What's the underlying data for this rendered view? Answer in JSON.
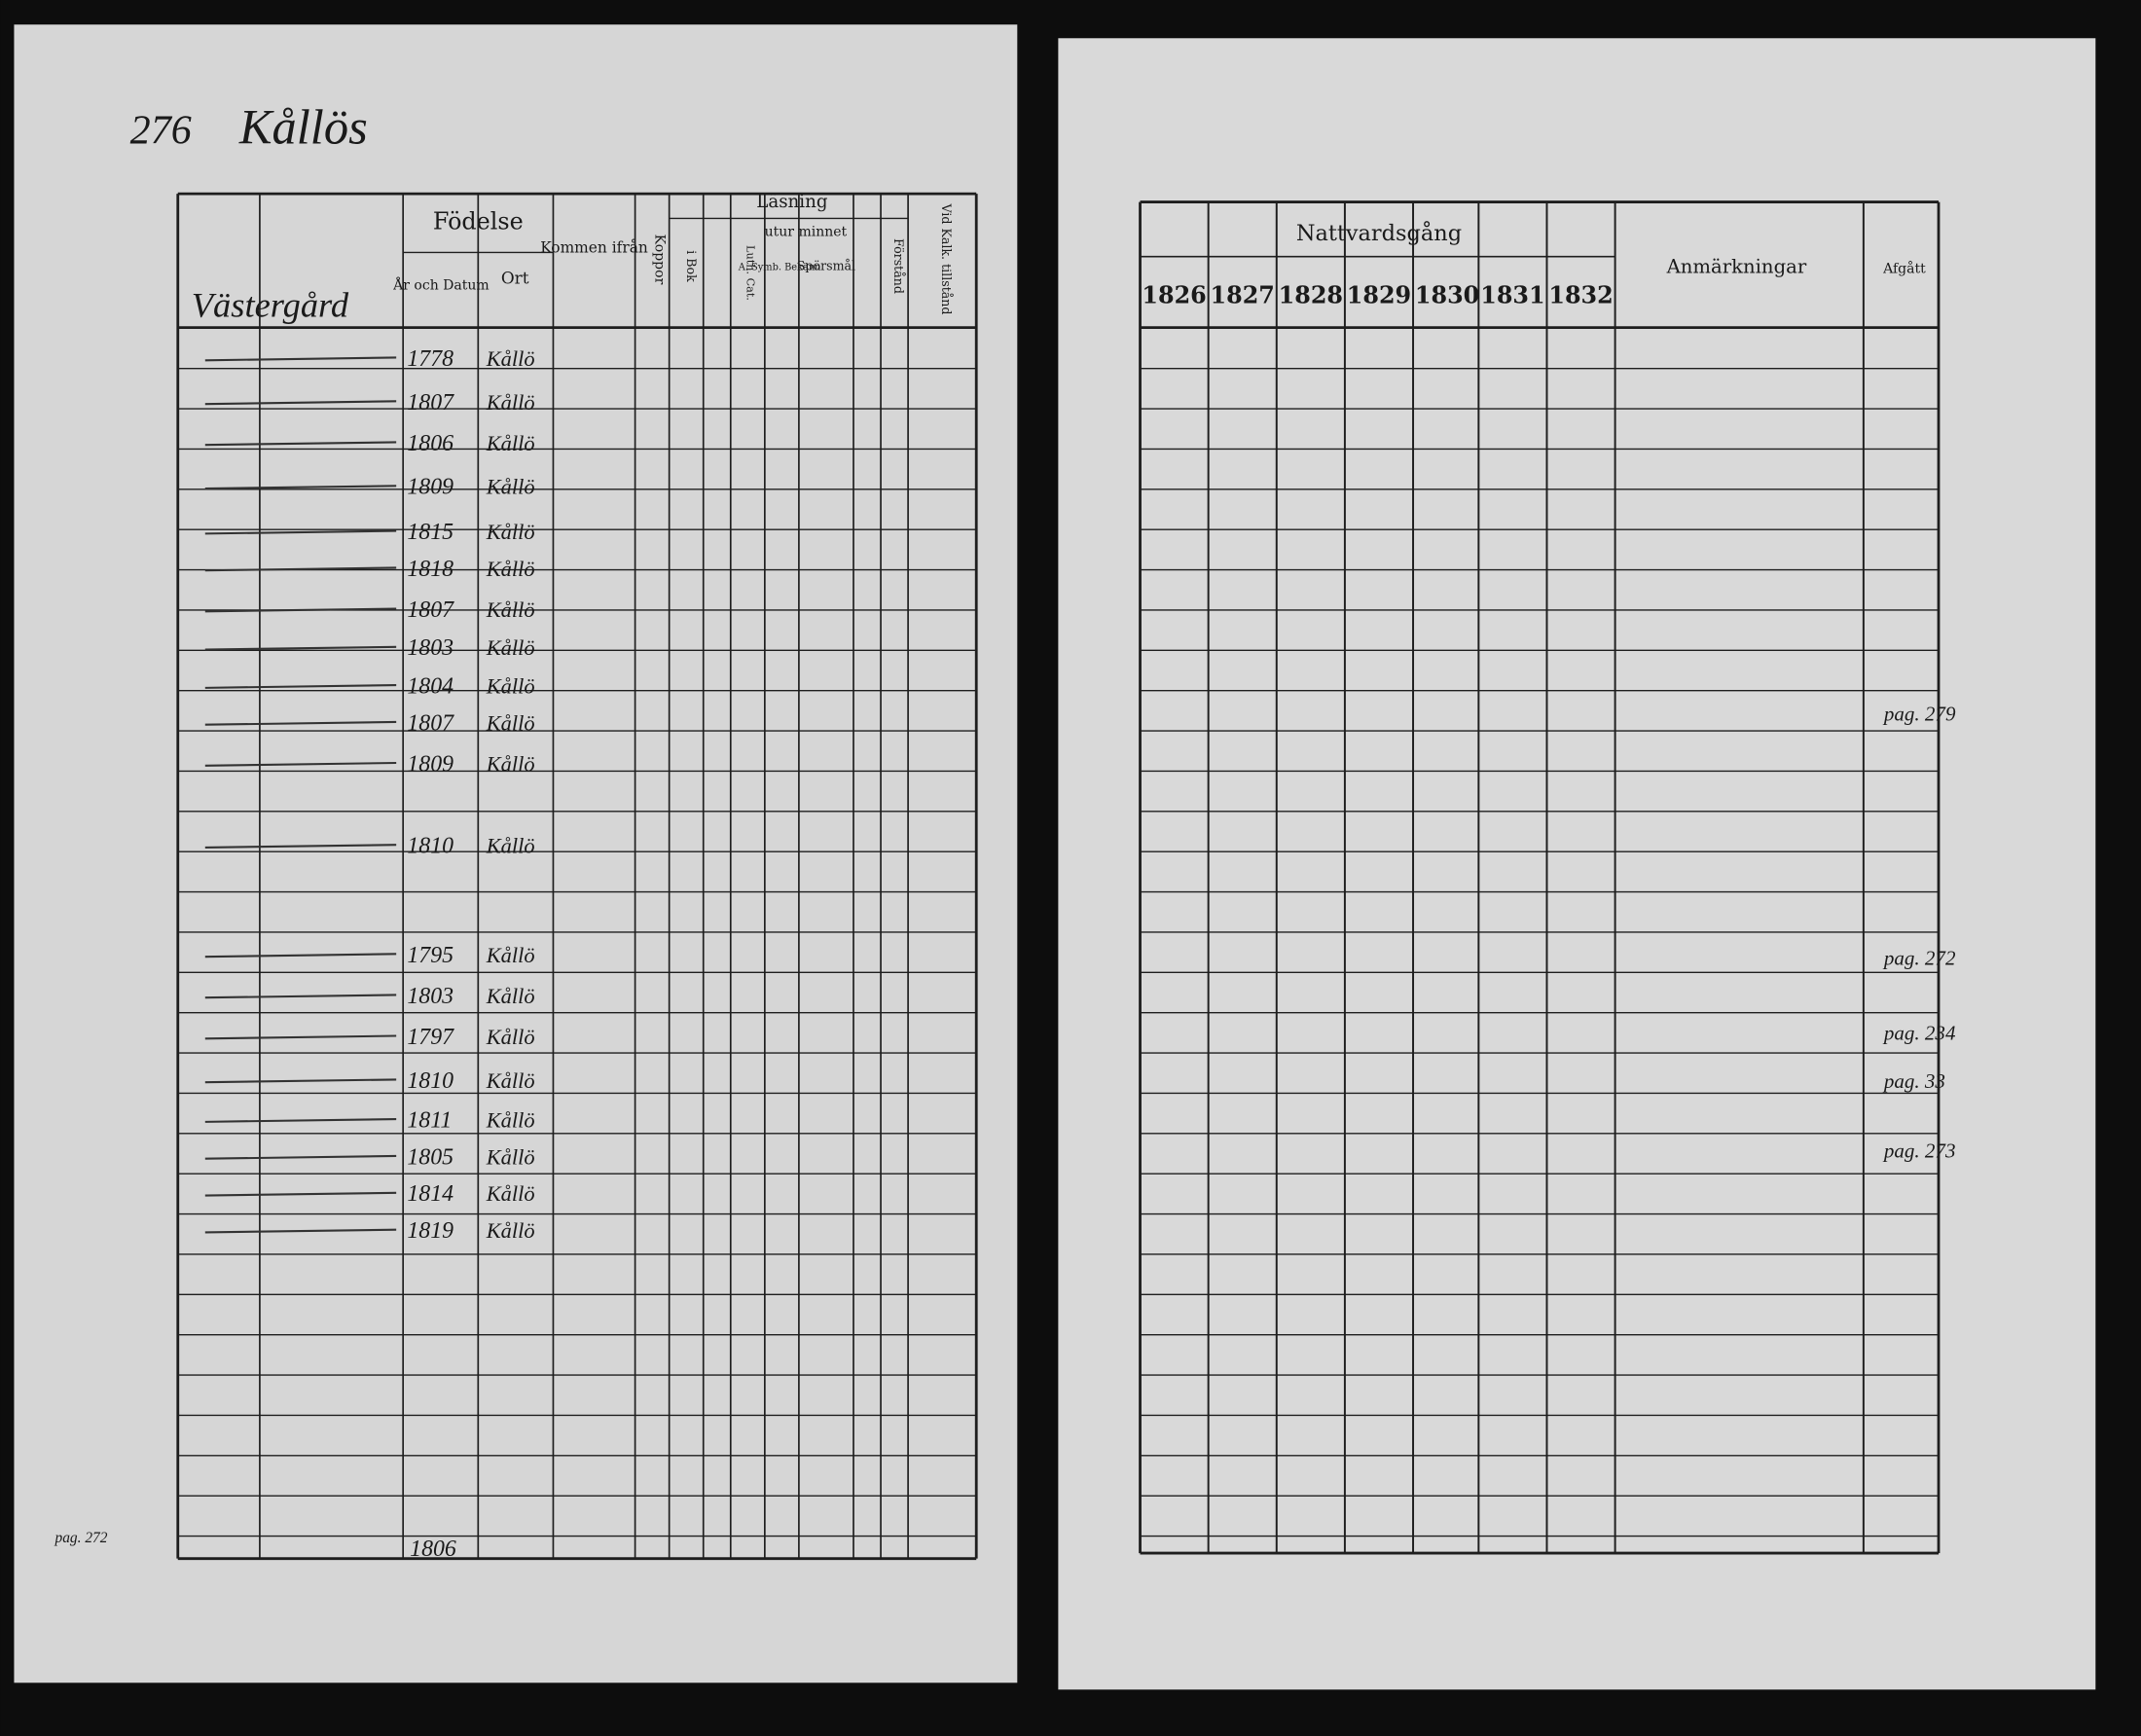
{
  "left_page": {
    "header": {
      "page_number": "276",
      "village": "Kållös",
      "farm": "Västergård"
    },
    "columns": {
      "birth": "Födelse",
      "date": "År och Datum",
      "place": "Ort",
      "from": "Kommen ifrån",
      "pox": "Koppor",
      "reading": "Läsning",
      "memory": "utur minnet",
      "book": "i Bok",
      "small_cat": "Luth. Cat.",
      "symb": "A. Symb. Bekänn.",
      "questions": "Spörsmål",
      "understanding": "Förstånd",
      "admitted": "Vid Kalk. tillstånd"
    },
    "rows": [
      {
        "year": "1778",
        "place": "Kållö"
      },
      {
        "year": "1807",
        "place": "Kållö"
      },
      {
        "year": "1806",
        "place": "Kållö"
      },
      {
        "year": "1809",
        "place": "Kållö"
      },
      {
        "year": "1815",
        "place": "Kållö"
      },
      {
        "year": "1818",
        "place": "Kållö"
      },
      {
        "year": "1807",
        "place": "Kållö"
      },
      {
        "year": "1803",
        "place": "Kållö"
      },
      {
        "year": "1804",
        "place": "Kållö"
      },
      {
        "year": "1807",
        "place": "Kållö"
      },
      {
        "year": "1809",
        "place": "Kållö"
      },
      {
        "year": "1810",
        "place": "Kållö"
      },
      {
        "year": "1795",
        "place": "Kållö"
      },
      {
        "year": "1803",
        "place": "Kållö"
      },
      {
        "year": "1797",
        "place": "Kållö"
      },
      {
        "year": "1810",
        "place": "Kållö"
      },
      {
        "year": "1811",
        "place": "Kållö"
      },
      {
        "year": "1805",
        "place": "Kållö"
      },
      {
        "year": "1814",
        "place": "Kållö"
      },
      {
        "year": "1819",
        "place": "Kållö"
      }
    ],
    "footer_row": {
      "ref": "pag. 272",
      "year": "1806"
    }
  },
  "right_page": {
    "header": {
      "communion": "Nattvardsgång",
      "years": [
        "1826",
        "1827",
        "1828",
        "1829",
        "1830",
        "1831",
        "1832"
      ],
      "remarks": "Anmärkningar",
      "departed": "Afgått"
    },
    "notes": [
      "pag. 279",
      "pag. 272",
      "pag. 234",
      "pag. 33",
      "pag. 273"
    ]
  }
}
